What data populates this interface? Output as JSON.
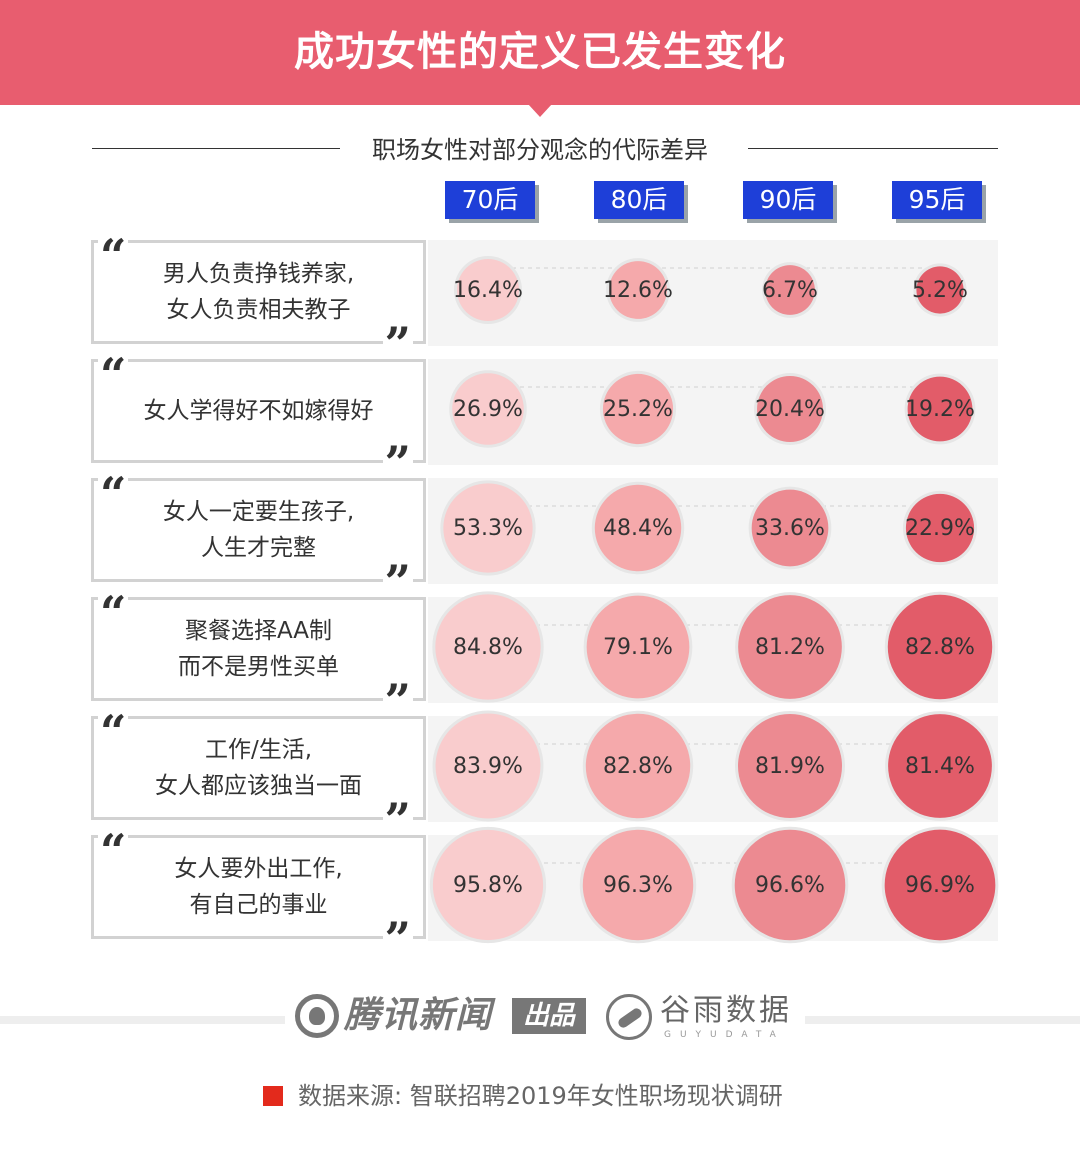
{
  "title": "成功女性的定义已发生变化",
  "subtitle": "职场女性对部分观念的代际差异",
  "colors": {
    "banner": "#e85d6f",
    "header_tab": "#1e3fd8",
    "series": [
      "#f9cccd",
      "#f5a9ab",
      "#ec8a91",
      "#e25c69"
    ]
  },
  "footer": {
    "brand_primary": "腾讯新闻",
    "brand_badge": "出品",
    "brand_secondary": "谷雨数据",
    "brand_secondary_sub": "GUYUDATA",
    "source": "数据来源: 智联招聘2019年女性职场现状调研",
    "source_icon": "red-square-icon"
  },
  "chart_data": {
    "type": "bubble-table",
    "columns": [
      "70后",
      "80后",
      "90后",
      "95后"
    ],
    "rows": [
      {
        "lines": [
          "男人负责挣钱养家,",
          "女人负责相夫教子"
        ],
        "values": [
          16.4,
          12.6,
          6.7,
          5.2
        ],
        "labels": [
          "16.4%",
          "12.6%",
          "6.7%",
          "5.2%"
        ]
      },
      {
        "lines": [
          "女人学得好不如嫁得好"
        ],
        "values": [
          26.9,
          25.2,
          20.4,
          19.2
        ],
        "labels": [
          "26.9%",
          "25.2%",
          "20.4%",
          "19.2%"
        ]
      },
      {
        "lines": [
          "女人一定要生孩子,",
          "人生才完整"
        ],
        "values": [
          53.3,
          48.4,
          33.6,
          22.9
        ],
        "labels": [
          "53.3%",
          "48.4%",
          "33.6%",
          "22.9%"
        ]
      },
      {
        "lines": [
          "聚餐选择AA制",
          "而不是男性买单"
        ],
        "values": [
          84.8,
          79.1,
          81.2,
          82.8
        ],
        "labels": [
          "84.8%",
          "79.1%",
          "81.2%",
          "82.8%"
        ]
      },
      {
        "lines": [
          "工作/生活,",
          "女人都应该独当一面"
        ],
        "values": [
          83.9,
          82.8,
          81.9,
          81.4
        ],
        "labels": [
          "83.9%",
          "82.8%",
          "81.9%",
          "81.4%"
        ]
      },
      {
        "lines": [
          "女人要外出工作,",
          "有自己的事业"
        ],
        "values": [
          95.8,
          96.3,
          96.6,
          96.9
        ],
        "labels": [
          "95.8%",
          "96.3%",
          "96.6%",
          "96.9%"
        ]
      }
    ]
  }
}
